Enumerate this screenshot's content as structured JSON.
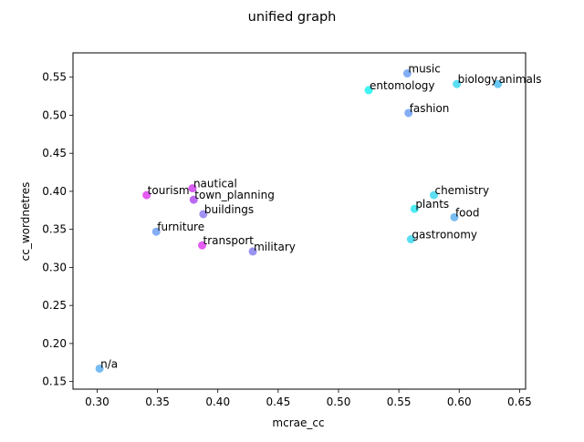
{
  "chart_data": {
    "type": "scatter",
    "title": "unified graph",
    "xlabel": "mcrae_cc",
    "ylabel": "cc_wordnetres",
    "xlim": [
      0.28,
      0.655
    ],
    "ylim": [
      0.14,
      0.582
    ],
    "xticks": [
      {
        "value": 0.3,
        "label": "0.30"
      },
      {
        "value": 0.35,
        "label": "0.35"
      },
      {
        "value": 0.4,
        "label": "0.40"
      },
      {
        "value": 0.45,
        "label": "0.45"
      },
      {
        "value": 0.5,
        "label": "0.50"
      },
      {
        "value": 0.55,
        "label": "0.55"
      },
      {
        "value": 0.6,
        "label": "0.60"
      },
      {
        "value": 0.65,
        "label": "0.65"
      }
    ],
    "yticks": [
      {
        "value": 0.15,
        "label": "0.15"
      },
      {
        "value": 0.2,
        "label": "0.20"
      },
      {
        "value": 0.25,
        "label": "0.25"
      },
      {
        "value": 0.3,
        "label": "0.30"
      },
      {
        "value": 0.35,
        "label": "0.35"
      },
      {
        "value": 0.4,
        "label": "0.40"
      },
      {
        "value": 0.45,
        "label": "0.45"
      },
      {
        "value": 0.5,
        "label": "0.50"
      },
      {
        "value": 0.55,
        "label": "0.55"
      }
    ],
    "grid": false,
    "points": [
      {
        "label": "music",
        "x": 0.557,
        "y": 0.555,
        "color": "#6fa0f5"
      },
      {
        "label": "biology",
        "x": 0.598,
        "y": 0.541,
        "color": "#3fd8f0"
      },
      {
        "label": "animals",
        "x": 0.632,
        "y": 0.541,
        "color": "#4fbef0"
      },
      {
        "label": "entomology",
        "x": 0.525,
        "y": 0.533,
        "color": "#1ff0f0"
      },
      {
        "label": "fashion",
        "x": 0.558,
        "y": 0.503,
        "color": "#6fa0f5"
      },
      {
        "label": "nautical",
        "x": 0.379,
        "y": 0.404,
        "color": "#d040f0"
      },
      {
        "label": "tourism",
        "x": 0.341,
        "y": 0.395,
        "color": "#e040f0"
      },
      {
        "label": "town_planning",
        "x": 0.38,
        "y": 0.389,
        "color": "#b050f0"
      },
      {
        "label": "chemistry",
        "x": 0.579,
        "y": 0.395,
        "color": "#3fd8f0"
      },
      {
        "label": "plants",
        "x": 0.563,
        "y": 0.377,
        "color": "#2fe8f0"
      },
      {
        "label": "buildings",
        "x": 0.388,
        "y": 0.37,
        "color": "#9080f0"
      },
      {
        "label": "food",
        "x": 0.596,
        "y": 0.366,
        "color": "#5fb0f0"
      },
      {
        "label": "furniture",
        "x": 0.349,
        "y": 0.347,
        "color": "#6fa0f5"
      },
      {
        "label": "gastronomy",
        "x": 0.56,
        "y": 0.337,
        "color": "#3fd8f0"
      },
      {
        "label": "transport",
        "x": 0.387,
        "y": 0.329,
        "color": "#e040f0"
      },
      {
        "label": "military",
        "x": 0.429,
        "y": 0.321,
        "color": "#8a80f0"
      },
      {
        "label": "n/a",
        "x": 0.302,
        "y": 0.167,
        "color": "#5fb0f0"
      }
    ]
  }
}
